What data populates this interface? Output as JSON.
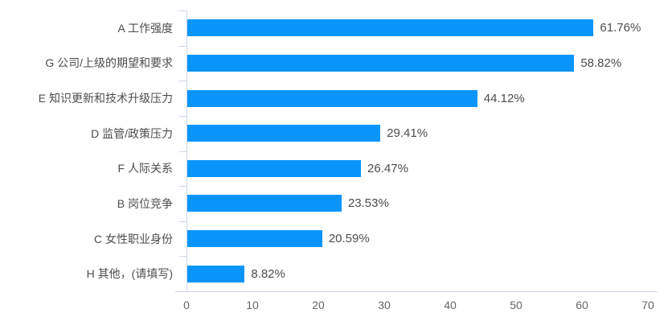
{
  "chart_data": {
    "type": "bar",
    "orientation": "horizontal",
    "title": "",
    "xlabel": "",
    "ylabel": "",
    "categories": [
      "A 工作强度",
      "G 公司/上级的期望和要求",
      "E 知识更新和技术升级压力",
      "D 监管/政策压力",
      "F 人际关系",
      "B 岗位竞争",
      "C 女性职业身份",
      "H 其他，(请填写)"
    ],
    "values": [
      61.76,
      58.82,
      44.12,
      29.41,
      26.47,
      23.53,
      20.59,
      8.82
    ],
    "value_labels": [
      "61.76%",
      "58.82%",
      "44.12%",
      "29.41%",
      "26.47%",
      "23.53%",
      "20.59%",
      "8.82%"
    ],
    "xlim": [
      0,
      70
    ],
    "x_ticks": [
      "0",
      "10",
      "20",
      "30",
      "40",
      "50",
      "60",
      "70"
    ],
    "grid": false,
    "legend": false,
    "colors": {
      "bar": "#0995FB",
      "axis_line": "#CCD6EB",
      "category_label": "#4D4D4D",
      "value_label": "#4D4D4D",
      "tick_label": "#666666"
    }
  }
}
